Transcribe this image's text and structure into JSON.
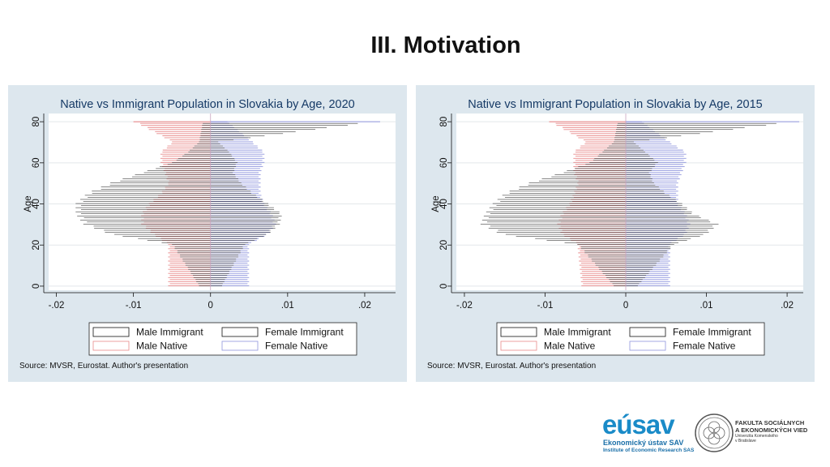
{
  "slide": {
    "title": "III. Motivation"
  },
  "colors": {
    "immigrant_outline": "#111111",
    "native_male": "#e8898a",
    "native_female": "#8f95dd",
    "panel_bg": "#dde7ee",
    "plot_bg": "#ffffff",
    "title_color": "#163a66"
  },
  "logos": {
    "eusav": {
      "name": "eúsav",
      "line1": "Ekonomický ústav SAV",
      "line2": "Institute of Economic Research SAS"
    },
    "fsev": {
      "line1": "FAKULTA SOCIÁLNYCH",
      "line2": "A EKONOMICKÝCH VIED",
      "line3": "Univerzita Komenského",
      "line4": "v Bratislave"
    }
  },
  "chart_data": [
    {
      "type": "bar",
      "orientation": "horizontal",
      "title": "Native vs Immigrant Population in Slovakia by Age, 2020",
      "ylabel": "Age",
      "xlabel": "",
      "xlim": [
        -0.021,
        0.024
      ],
      "ylim": [
        -2,
        84
      ],
      "xticks": [
        -0.02,
        -0.01,
        0,
        0.01,
        0.02
      ],
      "xtick_labels": [
        "-.02",
        "-.01",
        "0",
        ".01",
        ".02"
      ],
      "yticks": [
        0,
        20,
        40,
        60,
        80
      ],
      "yticks_labels": [
        "0",
        "20",
        "40",
        "60",
        "80"
      ],
      "legend": [
        "Male Immigrant",
        "Female Immigrant",
        "Male Native",
        "Female Native"
      ],
      "legend_position": "bottom",
      "note": "Source: MVSR, Eurostat. Author's presentation",
      "age_groups": [
        0,
        20,
        25,
        30,
        35,
        40,
        45,
        50,
        55,
        60,
        65,
        70,
        80
      ],
      "series": [
        {
          "name": "Male Immigrant",
          "values": [
            -0.0015,
            -0.005,
            -0.013,
            -0.0165,
            -0.0175,
            -0.0175,
            -0.016,
            -0.013,
            -0.009,
            -0.005,
            -0.003,
            -0.0015,
            -0.001
          ]
        },
        {
          "name": "Female Immigrant",
          "values": [
            0.0015,
            0.0045,
            0.0075,
            0.009,
            0.0093,
            0.0075,
            0.0055,
            0.004,
            0.003,
            0.0035,
            0.0025,
            0.001,
            0.022
          ]
        },
        {
          "name": "Male Native",
          "values": [
            -0.0055,
            -0.0055,
            -0.0075,
            -0.009,
            -0.009,
            -0.008,
            -0.0065,
            -0.0055,
            -0.006,
            -0.0065,
            -0.0065,
            -0.005,
            -0.01
          ]
        },
        {
          "name": "Female Native",
          "values": [
            0.005,
            0.005,
            0.0075,
            0.0085,
            0.008,
            0.007,
            0.0065,
            0.0065,
            0.0065,
            0.007,
            0.007,
            0.0055,
            0.0022
          ]
        }
      ]
    },
    {
      "type": "bar",
      "orientation": "horizontal",
      "title": "Native vs Immigrant Population in Slovakia by Age, 2015",
      "ylabel": "Age",
      "xlabel": "",
      "xlim": [
        -0.021,
        0.022
      ],
      "ylim": [
        -2,
        84
      ],
      "xticks": [
        -0.02,
        -0.01,
        0,
        0.01,
        0.02
      ],
      "xtick_labels": [
        "-.02",
        "-.01",
        "0",
        ".01",
        ".02"
      ],
      "yticks": [
        0,
        20,
        40,
        60,
        80
      ],
      "yticks_labels": [
        "0",
        "20",
        "40",
        "60",
        "80"
      ],
      "legend": [
        "Male Immigrant",
        "Female Immigrant",
        "Male Native",
        "Female Native"
      ],
      "legend_position": "bottom",
      "note": "Source: MVSR, Eurostat. Author's presentation",
      "age_groups": [
        0,
        20,
        25,
        30,
        35,
        40,
        45,
        50,
        55,
        60,
        65,
        70,
        80
      ],
      "series": [
        {
          "name": "Male Immigrant",
          "values": [
            -0.0015,
            -0.006,
            -0.0155,
            -0.018,
            -0.0175,
            -0.0165,
            -0.015,
            -0.012,
            -0.008,
            -0.0045,
            -0.003,
            -0.0015,
            -0.001
          ]
        },
        {
          "name": "Female Immigrant",
          "values": [
            0.0015,
            0.006,
            0.01,
            0.0115,
            0.0085,
            0.007,
            0.005,
            0.0035,
            0.003,
            0.004,
            0.0025,
            0.001,
            0.0215
          ]
        },
        {
          "name": "Male Native",
          "values": [
            -0.0055,
            -0.006,
            -0.008,
            -0.0085,
            -0.008,
            -0.007,
            -0.0065,
            -0.006,
            -0.0065,
            -0.0065,
            -0.0065,
            -0.005,
            -0.0095
          ]
        },
        {
          "name": "Female Native",
          "values": [
            0.0055,
            0.0055,
            0.0075,
            0.008,
            0.0075,
            0.0065,
            0.0065,
            0.0065,
            0.007,
            0.0075,
            0.0075,
            0.0055,
            0.002
          ]
        }
      ]
    }
  ]
}
